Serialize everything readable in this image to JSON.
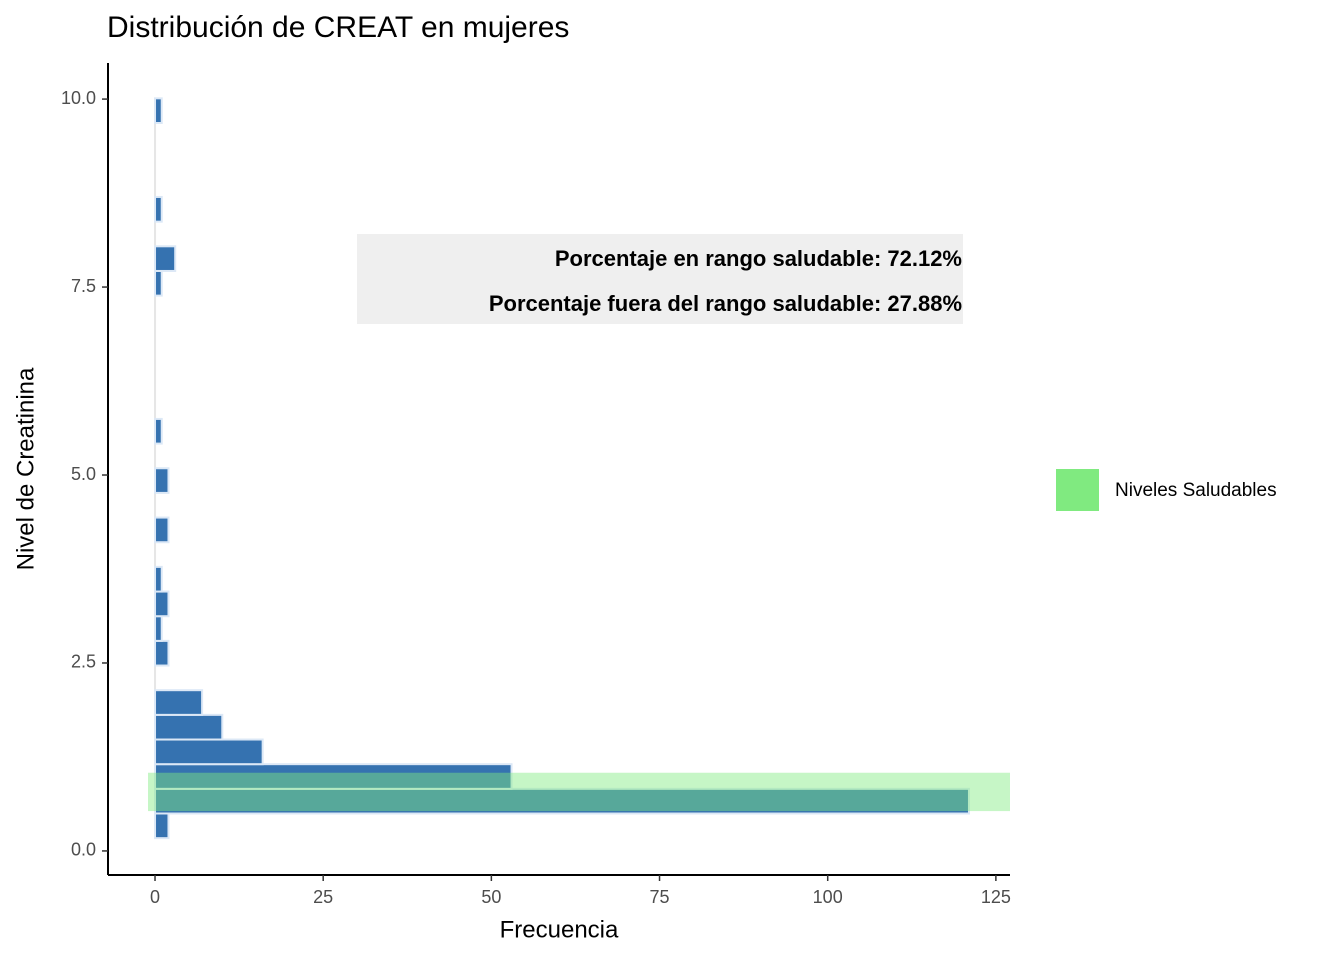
{
  "chart_data": {
    "type": "histogram",
    "orientation": "horizontal",
    "title": "Distribución de CREAT en mujeres",
    "x_label": "Frecuencia",
    "y_label": "Nivel de Creatinina",
    "bins": [
      0.17,
      0.498,
      0.826,
      1.154,
      1.482,
      1.81,
      2.138,
      2.466,
      2.794,
      3.122,
      3.45,
      3.778,
      4.106,
      4.434,
      4.762,
      5.09,
      5.418,
      5.746,
      6.074,
      6.402,
      6.73,
      7.058,
      7.386,
      7.714,
      8.042,
      8.37,
      8.698,
      9.026,
      9.354,
      9.682,
      10.01
    ],
    "values": [
      2,
      121,
      53,
      16,
      10,
      7,
      0,
      2,
      1,
      2,
      1,
      0,
      2,
      0,
      2,
      0,
      1,
      0,
      0,
      0,
      0,
      0,
      1,
      3,
      0,
      1,
      0,
      0,
      0,
      1
    ],
    "color": "#3572b0",
    "edge_color": "#dce8f6",
    "band": {
      "name": "Niveles Saludables",
      "range": [
        0.53,
        1.04
      ],
      "color": "#80ea80"
    },
    "annotations": [
      "Porcentaje en rango saludable: 72.12%",
      "Porcentaje fuera del rango saludable: 27.88%"
    ],
    "xlim": [
      -6.99,
      127.1
    ],
    "ylim": [
      -0.32,
      10.48
    ],
    "xticks": [
      0,
      25,
      50,
      75,
      100,
      125
    ],
    "yticks": [
      {
        "value": 0,
        "label": "0.0"
      },
      2.5,
      {
        "value": 5,
        "label": "5.0"
      },
      7.5,
      {
        "value": 10,
        "label": "10.0"
      }
    ],
    "legend_position": "right"
  }
}
